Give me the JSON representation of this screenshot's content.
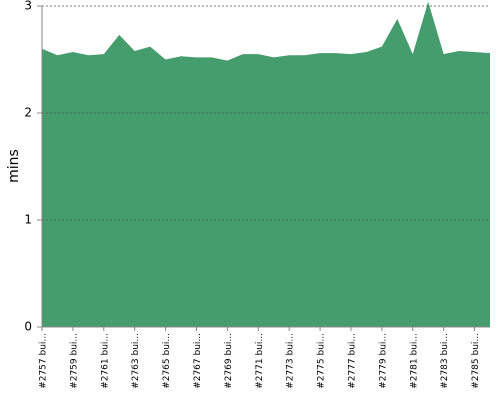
{
  "chart_data": {
    "type": "area",
    "y_label": "mins",
    "categories": [
      "#2757 bui...",
      null,
      "#2759 bui...",
      null,
      "#2761 bui...",
      null,
      "#2763 bui...",
      null,
      "#2765 bui...",
      null,
      "#2767 bui...",
      null,
      "#2769 bui...",
      null,
      "#2771 bui...",
      null,
      "#2773 bui...",
      null,
      "#2775 bui...",
      null,
      "#2777 bui...",
      null,
      "#2779 bui...",
      null,
      "#2781 bui...",
      null,
      "#2783 bui...",
      null,
      "#2785 bui...",
      null
    ],
    "values": [
      2.6,
      2.54,
      2.57,
      2.54,
      2.55,
      2.73,
      2.58,
      2.62,
      2.5,
      2.53,
      2.52,
      2.52,
      2.49,
      2.55,
      2.55,
      2.52,
      2.54,
      2.54,
      2.56,
      2.56,
      2.55,
      2.57,
      2.62,
      2.88,
      2.55,
      3.04,
      2.55,
      2.58,
      2.57,
      2.56
    ],
    "color": "#459c6c",
    "ylim": [
      0,
      3
    ],
    "yticks": [
      0,
      1,
      2,
      3
    ],
    "grid": true
  }
}
